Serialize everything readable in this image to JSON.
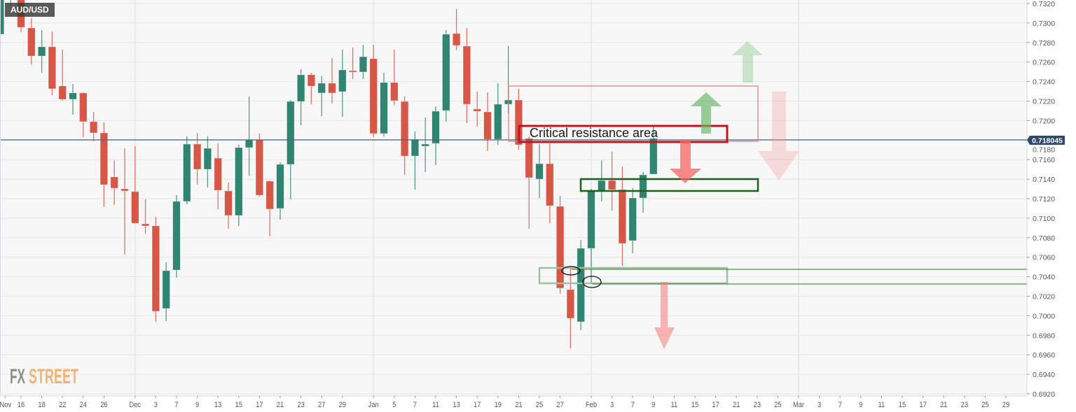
{
  "symbol": "AUD/USD",
  "annotation_text": "Critical resistance area",
  "watermark": {
    "part1": "FX",
    "part2": "STREET"
  },
  "colors": {
    "up": "#2f8571",
    "down": "#d65745",
    "price_line": "#2b4a6f",
    "grid": "#e6e6e6",
    "plot_bg": "#f7f7f7"
  },
  "chart_data": {
    "type": "candlestick",
    "title": "AUD/USD",
    "ylim": [
      0.692,
      0.732
    ],
    "y_ticks": [
      "0.7320",
      "0.7300",
      "0.7280",
      "0.7260",
      "0.7240",
      "0.7220",
      "0.7200",
      "0.7180",
      "0.7160",
      "0.7140",
      "0.7120",
      "0.7100",
      "0.7080",
      "0.7060",
      "0.7040",
      "0.7020",
      "0.7000",
      "0.6980",
      "0.6960",
      "0.6940",
      "0.6920"
    ],
    "current_price": 0.718045,
    "current_price_label": "0.718045",
    "x_labels": [
      {
        "label": "Nov",
        "idx": 0.5
      },
      {
        "label": "16",
        "idx": 2
      },
      {
        "label": "18",
        "idx": 4
      },
      {
        "label": "22",
        "idx": 6
      },
      {
        "label": "24",
        "idx": 8
      },
      {
        "label": "26",
        "idx": 10
      },
      {
        "label": "Dec",
        "idx": 13
      },
      {
        "label": "3",
        "idx": 15
      },
      {
        "label": "7",
        "idx": 17
      },
      {
        "label": "9",
        "idx": 19
      },
      {
        "label": "13",
        "idx": 21
      },
      {
        "label": "15",
        "idx": 23
      },
      {
        "label": "17",
        "idx": 25
      },
      {
        "label": "21",
        "idx": 27
      },
      {
        "label": "23",
        "idx": 29
      },
      {
        "label": "27",
        "idx": 31
      },
      {
        "label": "29",
        "idx": 33
      },
      {
        "label": "Jan",
        "idx": 36
      },
      {
        "label": "5",
        "idx": 38
      },
      {
        "label": "7",
        "idx": 40
      },
      {
        "label": "11",
        "idx": 42
      },
      {
        "label": "13",
        "idx": 44
      },
      {
        "label": "17",
        "idx": 46
      },
      {
        "label": "19",
        "idx": 48
      },
      {
        "label": "21",
        "idx": 50
      },
      {
        "label": "25",
        "idx": 52
      },
      {
        "label": "27",
        "idx": 54
      },
      {
        "label": "Feb",
        "idx": 57
      },
      {
        "label": "3",
        "idx": 59
      },
      {
        "label": "7",
        "idx": 61
      },
      {
        "label": "9",
        "idx": 63
      },
      {
        "label": "11",
        "idx": 65
      },
      {
        "label": "15",
        "idx": 67
      },
      {
        "label": "17",
        "idx": 69
      },
      {
        "label": "21",
        "idx": 71
      },
      {
        "label": "23",
        "idx": 73
      },
      {
        "label": "25",
        "idx": 75
      },
      {
        "label": "Mar",
        "idx": 77
      },
      {
        "label": "3",
        "idx": 79
      },
      {
        "label": "7",
        "idx": 81
      },
      {
        "label": "9",
        "idx": 83
      },
      {
        "label": "11",
        "idx": 85
      },
      {
        "label": "15",
        "idx": 87
      },
      {
        "label": "17",
        "idx": 89
      },
      {
        "label": "21",
        "idx": 91
      },
      {
        "label": "23",
        "idx": 93
      },
      {
        "label": "25",
        "idx": 95
      },
      {
        "label": "29",
        "idx": 97
      }
    ],
    "month_starts": [
      13,
      36,
      57,
      77
    ],
    "ohlc_fields": [
      "open",
      "high",
      "low",
      "close"
    ],
    "ohlc": [
      [
        0.72885,
        0.7335,
        0.72748,
        0.733
      ],
      [
        0.733,
        0.7345,
        0.7318,
        0.734
      ],
      [
        0.7335,
        0.7338,
        0.72906,
        0.72956
      ],
      [
        0.72949,
        0.73049,
        0.72576,
        0.72662
      ],
      [
        0.72662,
        0.72928,
        0.7249,
        0.72756
      ],
      [
        0.72756,
        0.72913,
        0.72261,
        0.72326
      ],
      [
        0.72354,
        0.72727,
        0.72204,
        0.72218
      ],
      [
        0.72218,
        0.72376,
        0.7206,
        0.72283
      ],
      [
        0.72283,
        0.7229,
        0.71831,
        0.71989
      ],
      [
        0.71989,
        0.72089,
        0.71788,
        0.71874
      ],
      [
        0.71874,
        0.71981,
        0.71114,
        0.71343
      ],
      [
        0.71422,
        0.71594,
        0.71136,
        0.71308
      ],
      [
        0.713,
        0.71716,
        0.70627,
        0.71279
      ],
      [
        0.71272,
        0.71738,
        0.70942,
        0.70949
      ],
      [
        0.70942,
        0.71193,
        0.70842,
        0.70921
      ],
      [
        0.70921,
        0.71014,
        0.69938,
        0.70046
      ],
      [
        0.70075,
        0.70548,
        0.69946,
        0.70462
      ],
      [
        0.70469,
        0.71236,
        0.7039,
        0.71172
      ],
      [
        0.71172,
        0.71838,
        0.71143,
        0.71759
      ],
      [
        0.71759,
        0.71874,
        0.71343,
        0.71501
      ],
      [
        0.71501,
        0.71838,
        0.71314,
        0.71716
      ],
      [
        0.71615,
        0.71766,
        0.71093,
        0.71286
      ],
      [
        0.71279,
        0.71364,
        0.70892,
        0.71028
      ],
      [
        0.71028,
        0.71752,
        0.70921,
        0.71723
      ],
      [
        0.71723,
        0.72247,
        0.71436,
        0.71802
      ],
      [
        0.71802,
        0.71867,
        0.7122,
        0.71236
      ],
      [
        0.71379,
        0.71386,
        0.70813,
        0.71093
      ],
      [
        0.711,
        0.71573,
        0.70985,
        0.71551
      ],
      [
        0.71551,
        0.72211,
        0.71193,
        0.72196
      ],
      [
        0.72196,
        0.72526,
        0.71953,
        0.72469
      ],
      [
        0.72469,
        0.7249,
        0.72168,
        0.72354
      ],
      [
        0.72283,
        0.72455,
        0.72046,
        0.72383
      ],
      [
        0.72383,
        0.72641,
        0.72175,
        0.72283
      ],
      [
        0.72297,
        0.72727,
        0.72039,
        0.72519
      ],
      [
        0.72512,
        0.72748,
        0.72426,
        0.72498
      ],
      [
        0.72498,
        0.72777,
        0.72426,
        0.72655
      ],
      [
        0.72634,
        0.72777,
        0.71831,
        0.71867
      ],
      [
        0.71867,
        0.7249,
        0.71838,
        0.7239
      ],
      [
        0.7239,
        0.72727,
        0.72161,
        0.72204
      ],
      [
        0.72196,
        0.72247,
        0.71444,
        0.71637
      ],
      [
        0.71637,
        0.71888,
        0.71293,
        0.71809
      ],
      [
        0.71738,
        0.72032,
        0.71472,
        0.71759
      ],
      [
        0.71766,
        0.72146,
        0.71544,
        0.72096
      ],
      [
        0.72103,
        0.72928,
        0.71989,
        0.72885
      ],
      [
        0.72892,
        0.73143,
        0.7272,
        0.7277
      ],
      [
        0.72763,
        0.72949,
        0.71974,
        0.72168
      ],
      [
        0.72118,
        0.72297,
        0.71938,
        0.72096
      ],
      [
        0.72089,
        0.7229,
        0.71688,
        0.71809
      ],
      [
        0.71809,
        0.72383,
        0.71752,
        0.72168
      ],
      [
        0.72168,
        0.72763,
        0.72075,
        0.72211
      ],
      [
        0.72211,
        0.72326,
        0.71702,
        0.71752
      ],
      [
        0.71817,
        0.71838,
        0.70892,
        0.71415
      ],
      [
        0.714,
        0.71759,
        0.71207,
        0.71558
      ],
      [
        0.71558,
        0.71766,
        0.70949,
        0.71128
      ],
      [
        0.71121,
        0.71229,
        0.70225,
        0.70283
      ],
      [
        0.70268,
        0.70498,
        0.69666,
        0.69974
      ],
      [
        0.69938,
        0.70777,
        0.69852,
        0.70691
      ],
      [
        0.70691,
        0.713,
        0.70333,
        0.71279
      ],
      [
        0.71279,
        0.71594,
        0.71172,
        0.71386
      ],
      [
        0.71386,
        0.7168,
        0.71078,
        0.71293
      ],
      [
        0.71293,
        0.71529,
        0.70512,
        0.70741
      ],
      [
        0.7077,
        0.71308,
        0.70641,
        0.71207
      ],
      [
        0.71207,
        0.71472,
        0.71057,
        0.71444
      ],
      [
        0.71451,
        0.71938,
        0.71451,
        0.71817
      ]
    ]
  }
}
